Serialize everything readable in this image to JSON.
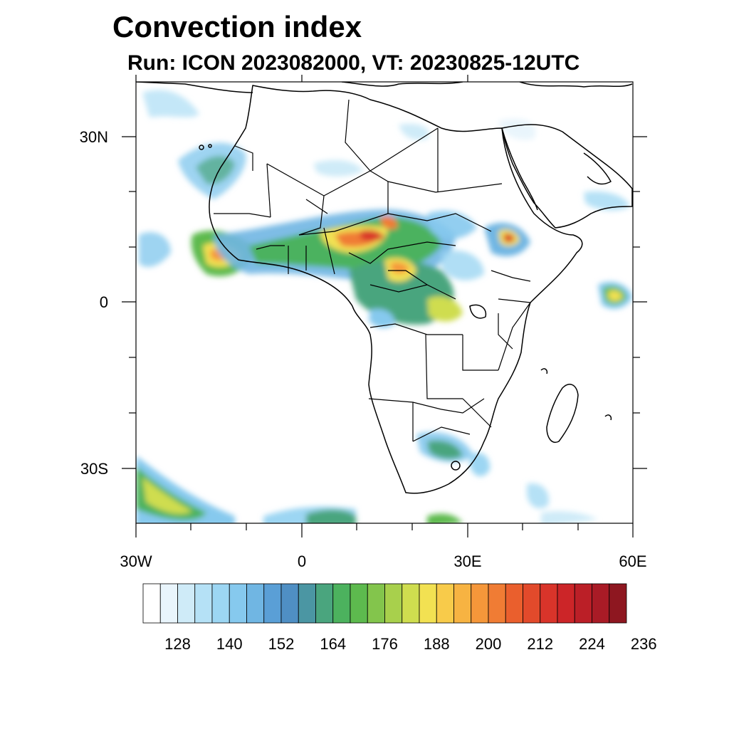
{
  "title": "Convection index",
  "subtitle": "Run: ICON 2023082000,  VT: 20230825-12UTC",
  "lat_labels": [
    "30N",
    "0",
    "30S"
  ],
  "lon_labels": [
    "30W",
    "0",
    "30E",
    "60E"
  ],
  "colorbar": {
    "labels": [
      "128",
      "140",
      "152",
      "164",
      "176",
      "188",
      "200",
      "212",
      "224",
      "236"
    ],
    "colors": [
      "#ffffff",
      "#e9f5fc",
      "#cfebf8",
      "#b5e1f6",
      "#9cd6f3",
      "#86c9ee",
      "#70b6e3",
      "#5a9fd6",
      "#4f8fc4",
      "#4b96a3",
      "#4aa57e",
      "#4cb25e",
      "#5dba4e",
      "#83c54c",
      "#a8d04c",
      "#cfdd4f",
      "#f2e152",
      "#f8cb4a",
      "#f7b342",
      "#f5973a",
      "#f07c34",
      "#ea5f2d",
      "#e24a2b",
      "#d9342a",
      "#cc2528",
      "#bb1f27",
      "#a91b26",
      "#8e1720"
    ]
  },
  "colors": {
    "coast": "#000000",
    "frame": "#000000"
  }
}
